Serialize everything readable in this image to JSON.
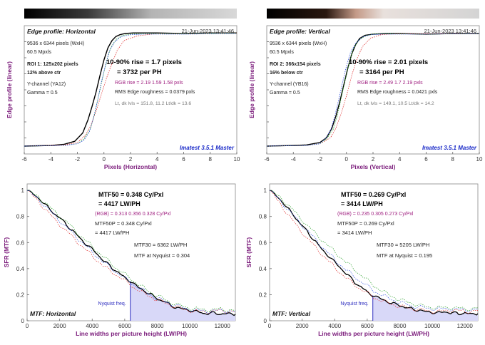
{
  "chart_data": [
    {
      "type": "line",
      "panel": "edge-horizontal",
      "title": "Edge profile: Horizontal",
      "timestamp": "21-Jun-2023 13:41:46",
      "ylabel": "Edge profile (linear)",
      "xlabel": "Pixels (Horizontal)",
      "xlim": [
        -6,
        10
      ],
      "x_ticks": [
        "-6",
        "-4",
        "-2",
        "0",
        "2",
        "4",
        "6",
        "8",
        "10"
      ],
      "info_lines": [
        "9536 x 6344 pixels (WxH)",
        "60.5 Mpxls",
        "ROI 1:  125x202 pixels",
        "12% above ctr",
        "Y-channel  (YA12)",
        "Gamma = 0.5"
      ],
      "rise_line1": "10-90% rise = 1.7 pixels",
      "rise_line2": "= 3732 per PH",
      "rgb_rise": "RGB rise = 2.19  1.59  1.58 pxls",
      "roughness": "RMS Edge roughness = 0.0379 pxls",
      "levels": "Lt, dk lvls = 151.8, 11.2   Lt/dk = 13.6",
      "watermark": "Imatest 3.5.1 Master",
      "series": [
        {
          "color": "#000000",
          "x": [
            -6,
            -4,
            -3,
            -2.2,
            -1.6,
            -1.2,
            -0.9,
            -0.6,
            -0.3,
            0,
            0.3,
            0.6,
            0.9,
            1.2,
            1.6,
            2.2,
            3,
            4,
            6,
            8,
            10
          ],
          "y": [
            0.03,
            0.035,
            0.045,
            0.07,
            0.14,
            0.25,
            0.36,
            0.48,
            0.62,
            0.75,
            0.85,
            0.91,
            0.945,
            0.96,
            0.97,
            0.975,
            0.975,
            0.975,
            0.97,
            0.975,
            0.975
          ]
        },
        {
          "color": "#e03030",
          "x": [
            -6,
            -3,
            -2,
            -1.4,
            -1,
            -0.6,
            -0.2,
            0.2,
            0.6,
            1,
            1.5,
            2.5,
            4,
            6,
            10
          ],
          "y": [
            0.03,
            0.04,
            0.06,
            0.12,
            0.2,
            0.32,
            0.46,
            0.6,
            0.72,
            0.83,
            0.91,
            0.95,
            0.97,
            0.97,
            0.975
          ]
        },
        {
          "color": "#2aa02a",
          "x": [
            -6,
            -3,
            -2,
            -1.5,
            -1,
            -0.7,
            -0.4,
            -0.1,
            0.2,
            0.5,
            0.9,
            1.4,
            2,
            3,
            6,
            10
          ],
          "y": [
            0.03,
            0.035,
            0.05,
            0.09,
            0.18,
            0.3,
            0.45,
            0.6,
            0.74,
            0.85,
            0.92,
            0.955,
            0.965,
            0.97,
            0.97,
            0.975
          ]
        },
        {
          "color": "#3050e0",
          "x": [
            -6,
            -3,
            -2,
            -1.5,
            -1.1,
            -0.8,
            -0.5,
            -0.2,
            0.1,
            0.4,
            0.8,
            1.3,
            2,
            3,
            6,
            10
          ],
          "y": [
            0.03,
            0.035,
            0.05,
            0.08,
            0.15,
            0.26,
            0.4,
            0.56,
            0.7,
            0.82,
            0.9,
            0.945,
            0.96,
            0.965,
            0.965,
            0.97
          ]
        }
      ]
    },
    {
      "type": "line",
      "panel": "edge-vertical",
      "title": "Edge profile: Vertical",
      "timestamp": "21-Jun-2023 13:41:46",
      "ylabel": "Edge profile (linear)",
      "xlabel": "Pixels (Vertical)",
      "xlim": [
        -6,
        10
      ],
      "x_ticks": [
        "-6",
        "-4",
        "-2",
        "0",
        "2",
        "4",
        "6",
        "8",
        "10"
      ],
      "info_lines": [
        "9536 x 6344 pixels (WxH)",
        "60.5 Mpxls",
        "ROI 2:  366x154 pixels",
        "16% below ctr",
        "Y-channel  (YB16)",
        "Gamma = 0.5"
      ],
      "rise_line1": "10-90% rise = 2.01 pixels",
      "rise_line2": "= 3164 per PH",
      "rgb_rise": "RGB rise = 2.49  1.7  2.19 pxls",
      "roughness": "RMS Edge roughness = 0.0421 pxls",
      "levels": "Lt, dk lvls = 149.1, 10.5   Lt/dk = 14.2",
      "watermark": "Imatest 3.5.1 Master",
      "series": [
        {
          "color": "#000000",
          "x": [
            -6,
            -4,
            -3,
            -2,
            -1.5,
            -1.1,
            -0.8,
            -0.5,
            -0.2,
            0.1,
            0.4,
            0.7,
            1,
            1.4,
            2,
            3,
            4,
            6,
            8,
            10
          ],
          "y": [
            0.03,
            0.035,
            0.04,
            0.06,
            0.1,
            0.18,
            0.28,
            0.4,
            0.54,
            0.68,
            0.8,
            0.88,
            0.93,
            0.955,
            0.965,
            0.97,
            0.97,
            0.965,
            0.97,
            0.97
          ]
        },
        {
          "color": "#e03030",
          "x": [
            -6,
            -3,
            -2,
            -1.2,
            -0.8,
            -0.4,
            0,
            0.4,
            0.8,
            1.2,
            1.8,
            2.6,
            4,
            6,
            10
          ],
          "y": [
            0.03,
            0.035,
            0.05,
            0.1,
            0.18,
            0.3,
            0.45,
            0.62,
            0.76,
            0.86,
            0.93,
            0.96,
            0.97,
            0.97,
            0.97
          ]
        },
        {
          "color": "#2aa02a",
          "x": [
            -6,
            -3,
            -2,
            -1.5,
            -1,
            -0.7,
            -0.4,
            -0.1,
            0.2,
            0.5,
            0.9,
            1.4,
            2,
            3,
            6,
            10
          ],
          "y": [
            0.03,
            0.035,
            0.05,
            0.09,
            0.17,
            0.28,
            0.43,
            0.58,
            0.72,
            0.84,
            0.91,
            0.95,
            0.965,
            0.97,
            0.965,
            0.97
          ]
        },
        {
          "color": "#3050e0",
          "x": [
            -6,
            -3,
            -2,
            -1.6,
            -1.2,
            -0.9,
            -0.6,
            -0.3,
            0,
            0.3,
            0.7,
            1.2,
            1.8,
            2.6,
            6,
            10
          ],
          "y": [
            0.03,
            0.035,
            0.05,
            0.09,
            0.16,
            0.27,
            0.41,
            0.56,
            0.7,
            0.81,
            0.89,
            0.94,
            0.96,
            0.965,
            0.965,
            0.97
          ]
        }
      ]
    },
    {
      "type": "line",
      "panel": "mtf-horizontal",
      "label": "MTF: Horizontal",
      "ylabel": "SFR (MTF)",
      "xlabel": "Line widths per picture height (LW/PH)",
      "xlim": [
        0,
        12800
      ],
      "ylim": [
        0,
        1.05
      ],
      "x_ticks": [
        "0",
        "2000",
        "4000",
        "6000",
        "8000",
        "10000",
        "12000"
      ],
      "y_ticks": [
        "0",
        "0.2",
        "0.4",
        "0.6",
        "0.8",
        "1"
      ],
      "y_tick_values": [
        0,
        0.2,
        0.4,
        0.6,
        0.8,
        1.0
      ],
      "mtf50": "MTF50 = 0.348 Cy/Pxl",
      "mtf50_lwph": "= 4417 LW/PH",
      "rgb": "(RGB) = 0.313  0.356  0.328 Cy/Pxl",
      "mtf50p": "MTF50P = 0.348 Cy/Pxl",
      "mtf50p_lwph": "= 4417 LW/PH",
      "mtf30": "MTF30 = 6362 LW/PH",
      "nyquist_mtf": "MTF at Nyquist = 0.304",
      "nyquist_label": "Nyquist freq.",
      "nyquist": 6344,
      "nyquist_value": 0.304,
      "series": [
        {
          "color": "#000000",
          "x": [
            0,
            400,
            800,
            1200,
            1600,
            2000,
            2400,
            2800,
            3200,
            3600,
            4000,
            4400,
            4800,
            5200,
            5600,
            6000,
            6344,
            6800,
            7200,
            7600,
            8000,
            8400,
            8800,
            9200,
            9600,
            10000,
            10400,
            10800,
            11200,
            11600,
            12000,
            12400,
            12800
          ],
          "y": [
            1.0,
            0.97,
            0.93,
            0.88,
            0.83,
            0.79,
            0.74,
            0.69,
            0.64,
            0.59,
            0.55,
            0.5,
            0.45,
            0.41,
            0.37,
            0.33,
            0.304,
            0.26,
            0.23,
            0.2,
            0.17,
            0.15,
            0.12,
            0.1,
            0.09,
            0.08,
            0.07,
            0.06,
            0.055,
            0.06,
            0.05,
            0.055,
            0.05
          ]
        },
        {
          "color": "#e03030",
          "x": [
            0,
            800,
            1600,
            2400,
            3200,
            4000,
            4800,
            5600,
            6400,
            7200,
            8000,
            8800,
            9600,
            10400,
            11200,
            12000,
            12800
          ],
          "y": [
            1.0,
            0.9,
            0.79,
            0.69,
            0.59,
            0.5,
            0.41,
            0.34,
            0.27,
            0.21,
            0.16,
            0.12,
            0.09,
            0.07,
            0.07,
            0.08,
            0.07
          ]
        },
        {
          "color": "#2aa02a",
          "x": [
            0,
            800,
            1600,
            2400,
            3200,
            4000,
            4800,
            5600,
            6400,
            7200,
            8000,
            8800,
            9600,
            10400,
            11200,
            12000,
            12800
          ],
          "y": [
            1.0,
            0.94,
            0.85,
            0.76,
            0.66,
            0.57,
            0.48,
            0.39,
            0.32,
            0.25,
            0.19,
            0.14,
            0.11,
            0.09,
            0.08,
            0.09,
            0.08
          ]
        },
        {
          "color": "#3050e0",
          "x": [
            0,
            800,
            1600,
            2400,
            3200,
            4000,
            4800,
            5600,
            6400,
            7200,
            8000,
            8800,
            9600,
            10400,
            11200,
            12000,
            12800
          ],
          "y": [
            1.0,
            0.92,
            0.82,
            0.72,
            0.62,
            0.53,
            0.44,
            0.36,
            0.29,
            0.23,
            0.17,
            0.13,
            0.1,
            0.08,
            0.07,
            0.08,
            0.07
          ]
        }
      ]
    },
    {
      "type": "line",
      "panel": "mtf-vertical",
      "label": "MTF: Vertical",
      "ylabel": "SFR (MTF)",
      "xlabel": "Line widths per picture height (LW/PH)",
      "xlim": [
        0,
        12800
      ],
      "ylim": [
        0,
        1.05
      ],
      "x_ticks": [
        "0",
        "2000",
        "4000",
        "6000",
        "8000",
        "10000",
        "12000"
      ],
      "y_ticks": [
        "0",
        "0.2",
        "0.4",
        "0.6",
        "0.8",
        "1"
      ],
      "y_tick_values": [
        0,
        0.2,
        0.4,
        0.6,
        0.8,
        1.0
      ],
      "mtf50": "MTF50 = 0.269 Cy/Pxl",
      "mtf50_lwph": "= 3414 LW/PH",
      "rgb": "(RGB) = 0.235  0.305  0.273 Cy/Pxl",
      "mtf50p": "MTF50P = 0.269 Cy/Pxl",
      "mtf50p_lwph": "= 3414 LW/PH",
      "mtf30": "MTF30 = 5205 LW/PH",
      "nyquist_mtf": "MTF at Nyquist = 0.195",
      "nyquist_label": "Nyquist freq.",
      "nyquist": 6344,
      "nyquist_value": 0.195,
      "series": [
        {
          "color": "#000000",
          "x": [
            0,
            400,
            800,
            1200,
            1600,
            2000,
            2400,
            2800,
            3200,
            3600,
            4000,
            4400,
            4800,
            5200,
            5600,
            6000,
            6344,
            6800,
            7200,
            7600,
            8000,
            8400,
            8800,
            9200,
            9600,
            10000,
            10400,
            10800,
            11200,
            11600,
            12000,
            12400,
            12800
          ],
          "y": [
            1.0,
            0.96,
            0.91,
            0.85,
            0.79,
            0.73,
            0.67,
            0.61,
            0.55,
            0.5,
            0.45,
            0.4,
            0.35,
            0.3,
            0.26,
            0.22,
            0.195,
            0.17,
            0.15,
            0.13,
            0.12,
            0.1,
            0.09,
            0.08,
            0.07,
            0.065,
            0.06,
            0.07,
            0.06,
            0.055,
            0.06,
            0.05,
            0.055
          ]
        },
        {
          "color": "#e03030",
          "x": [
            0,
            800,
            1600,
            2400,
            3200,
            4000,
            4800,
            5600,
            6400,
            7200,
            8000,
            8800,
            9600,
            10400,
            11200,
            12000,
            12800
          ],
          "y": [
            1.0,
            0.87,
            0.74,
            0.62,
            0.51,
            0.41,
            0.32,
            0.24,
            0.18,
            0.14,
            0.11,
            0.09,
            0.08,
            0.07,
            0.08,
            0.07,
            0.08
          ]
        },
        {
          "color": "#2aa02a",
          "x": [
            0,
            800,
            1600,
            2400,
            3200,
            4000,
            4800,
            5600,
            6400,
            7200,
            8000,
            8800,
            9600,
            10400,
            11200,
            12000,
            12800
          ],
          "y": [
            1.0,
            0.93,
            0.83,
            0.72,
            0.62,
            0.53,
            0.44,
            0.35,
            0.27,
            0.21,
            0.16,
            0.13,
            0.11,
            0.1,
            0.1,
            0.09,
            0.1
          ]
        },
        {
          "color": "#3050e0",
          "x": [
            0,
            800,
            1600,
            2400,
            3200,
            4000,
            4800,
            5600,
            6400,
            7200,
            8000,
            8800,
            9600,
            10400,
            11200,
            12000,
            12800
          ],
          "y": [
            1.0,
            0.9,
            0.79,
            0.68,
            0.57,
            0.47,
            0.38,
            0.3,
            0.23,
            0.18,
            0.14,
            0.11,
            0.1,
            0.09,
            0.09,
            0.08,
            0.09
          ]
        }
      ]
    }
  ]
}
